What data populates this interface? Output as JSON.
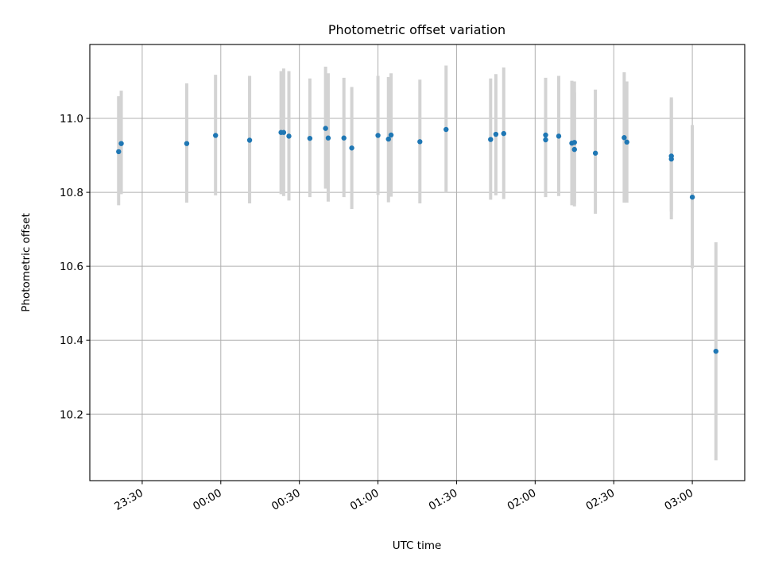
{
  "chart_data": {
    "type": "scatter",
    "title": "Photometric offset variation",
    "xlabel": "UTC time",
    "ylabel": "Photometric offset",
    "x_axis_type": "time",
    "xlim": [
      "23:10",
      "03:20"
    ],
    "ylim": [
      10.02,
      11.2
    ],
    "xticks": [
      "23:30",
      "00:00",
      "00:30",
      "01:00",
      "01:30",
      "02:00",
      "02:30",
      "03:00"
    ],
    "yticks": [
      10.2,
      10.4,
      10.6,
      10.8,
      11.0
    ],
    "grid": true,
    "colors": {
      "point": "#1f77b4",
      "error_bar": "#d3d3d3"
    },
    "points": [
      {
        "t": "23:21",
        "y": 10.91,
        "lo": 10.765,
        "hi": 11.06
      },
      {
        "t": "23:22",
        "y": 10.932,
        "lo": 10.795,
        "hi": 11.075
      },
      {
        "t": "23:47",
        "y": 10.932,
        "lo": 10.772,
        "hi": 11.095
      },
      {
        "t": "23:58",
        "y": 10.954,
        "lo": 10.792,
        "hi": 11.118
      },
      {
        "t": "00:11",
        "y": 10.941,
        "lo": 10.77,
        "hi": 11.115
      },
      {
        "t": "00:23",
        "y": 10.962,
        "lo": 10.795,
        "hi": 11.128
      },
      {
        "t": "00:24",
        "y": 10.962,
        "lo": 10.79,
        "hi": 11.135
      },
      {
        "t": "00:26",
        "y": 10.952,
        "lo": 10.778,
        "hi": 11.128
      },
      {
        "t": "00:34",
        "y": 10.946,
        "lo": 10.787,
        "hi": 11.108
      },
      {
        "t": "00:40",
        "y": 10.973,
        "lo": 10.81,
        "hi": 11.14
      },
      {
        "t": "00:41",
        "y": 10.947,
        "lo": 10.775,
        "hi": 11.122
      },
      {
        "t": "00:47",
        "y": 10.947,
        "lo": 10.787,
        "hi": 11.11
      },
      {
        "t": "00:50",
        "y": 10.92,
        "lo": 10.755,
        "hi": 11.085
      },
      {
        "t": "01:00",
        "y": 10.954,
        "lo": 10.793,
        "hi": 11.115
      },
      {
        "t": "01:04",
        "y": 10.944,
        "lo": 10.773,
        "hi": 11.112
      },
      {
        "t": "01:05",
        "y": 10.955,
        "lo": 10.788,
        "hi": 11.122
      },
      {
        "t": "01:16",
        "y": 10.937,
        "lo": 10.77,
        "hi": 11.105
      },
      {
        "t": "01:26",
        "y": 10.97,
        "lo": 10.798,
        "hi": 11.143
      },
      {
        "t": "01:43",
        "y": 10.943,
        "lo": 10.78,
        "hi": 11.108
      },
      {
        "t": "01:45",
        "y": 10.957,
        "lo": 10.792,
        "hi": 11.12
      },
      {
        "t": "01:48",
        "y": 10.959,
        "lo": 10.782,
        "hi": 11.138
      },
      {
        "t": "02:04",
        "y": 10.942,
        "lo": 10.787,
        "hi": 11.098
      },
      {
        "t": "02:04",
        "y": 10.955,
        "lo": 10.795,
        "hi": 11.11
      },
      {
        "t": "02:09",
        "y": 10.952,
        "lo": 10.79,
        "hi": 11.115
      },
      {
        "t": "02:14",
        "y": 10.933,
        "lo": 10.765,
        "hi": 11.102
      },
      {
        "t": "02:15",
        "y": 10.935,
        "lo": 10.77,
        "hi": 11.1
      },
      {
        "t": "02:15",
        "y": 10.916,
        "lo": 10.762,
        "hi": 11.07
      },
      {
        "t": "02:23",
        "y": 10.906,
        "lo": 10.742,
        "hi": 11.078
      },
      {
        "t": "02:34",
        "y": 10.948,
        "lo": 10.772,
        "hi": 11.125
      },
      {
        "t": "02:35",
        "y": 10.936,
        "lo": 10.772,
        "hi": 11.1
      },
      {
        "t": "02:52",
        "y": 10.89,
        "lo": 10.727,
        "hi": 11.057
      },
      {
        "t": "02:52",
        "y": 10.898,
        "lo": 10.748,
        "hi": 11.052
      },
      {
        "t": "03:00",
        "y": 10.787,
        "lo": 10.595,
        "hi": 10.982
      },
      {
        "t": "03:09",
        "y": 10.37,
        "lo": 10.075,
        "hi": 10.665
      }
    ]
  }
}
